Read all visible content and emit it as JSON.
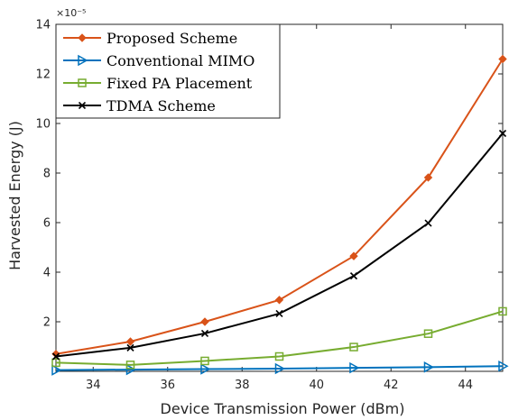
{
  "chart_data": {
    "type": "line",
    "xlabel": "Device Transmission Power (dBm)",
    "ylabel": "Harvested Energy (J)",
    "y_multiplier": "×10⁻⁵",
    "xlim": [
      33,
      45
    ],
    "ylim": [
      0,
      14
    ],
    "x_ticks": [
      "34",
      "36",
      "38",
      "40",
      "42",
      "44"
    ],
    "y_ticks": [
      "2",
      "4",
      "6",
      "8",
      "10",
      "12",
      "14"
    ],
    "x": [
      33,
      35,
      37,
      39,
      41,
      43,
      45
    ],
    "grid": false,
    "legend_position": "top-left",
    "series": [
      {
        "name": "Proposed Scheme",
        "color": "#D95319",
        "marker": "diamond",
        "values": [
          0.7,
          1.2,
          2.0,
          2.88,
          4.65,
          7.82,
          12.6
        ]
      },
      {
        "name": "Conventional MIMO",
        "color": "#0072BD",
        "marker": "triangle-right",
        "values": [
          0.05,
          0.07,
          0.09,
          0.11,
          0.14,
          0.17,
          0.21
        ]
      },
      {
        "name": "Fixed PA Placement",
        "color": "#77AC30",
        "marker": "square",
        "values": [
          0.35,
          0.26,
          0.42,
          0.6,
          0.98,
          1.52,
          2.42
        ]
      },
      {
        "name": "TDMA Scheme",
        "color": "#000000",
        "marker": "x",
        "values": [
          0.6,
          0.95,
          1.53,
          2.33,
          3.85,
          5.98,
          9.6
        ]
      }
    ]
  }
}
